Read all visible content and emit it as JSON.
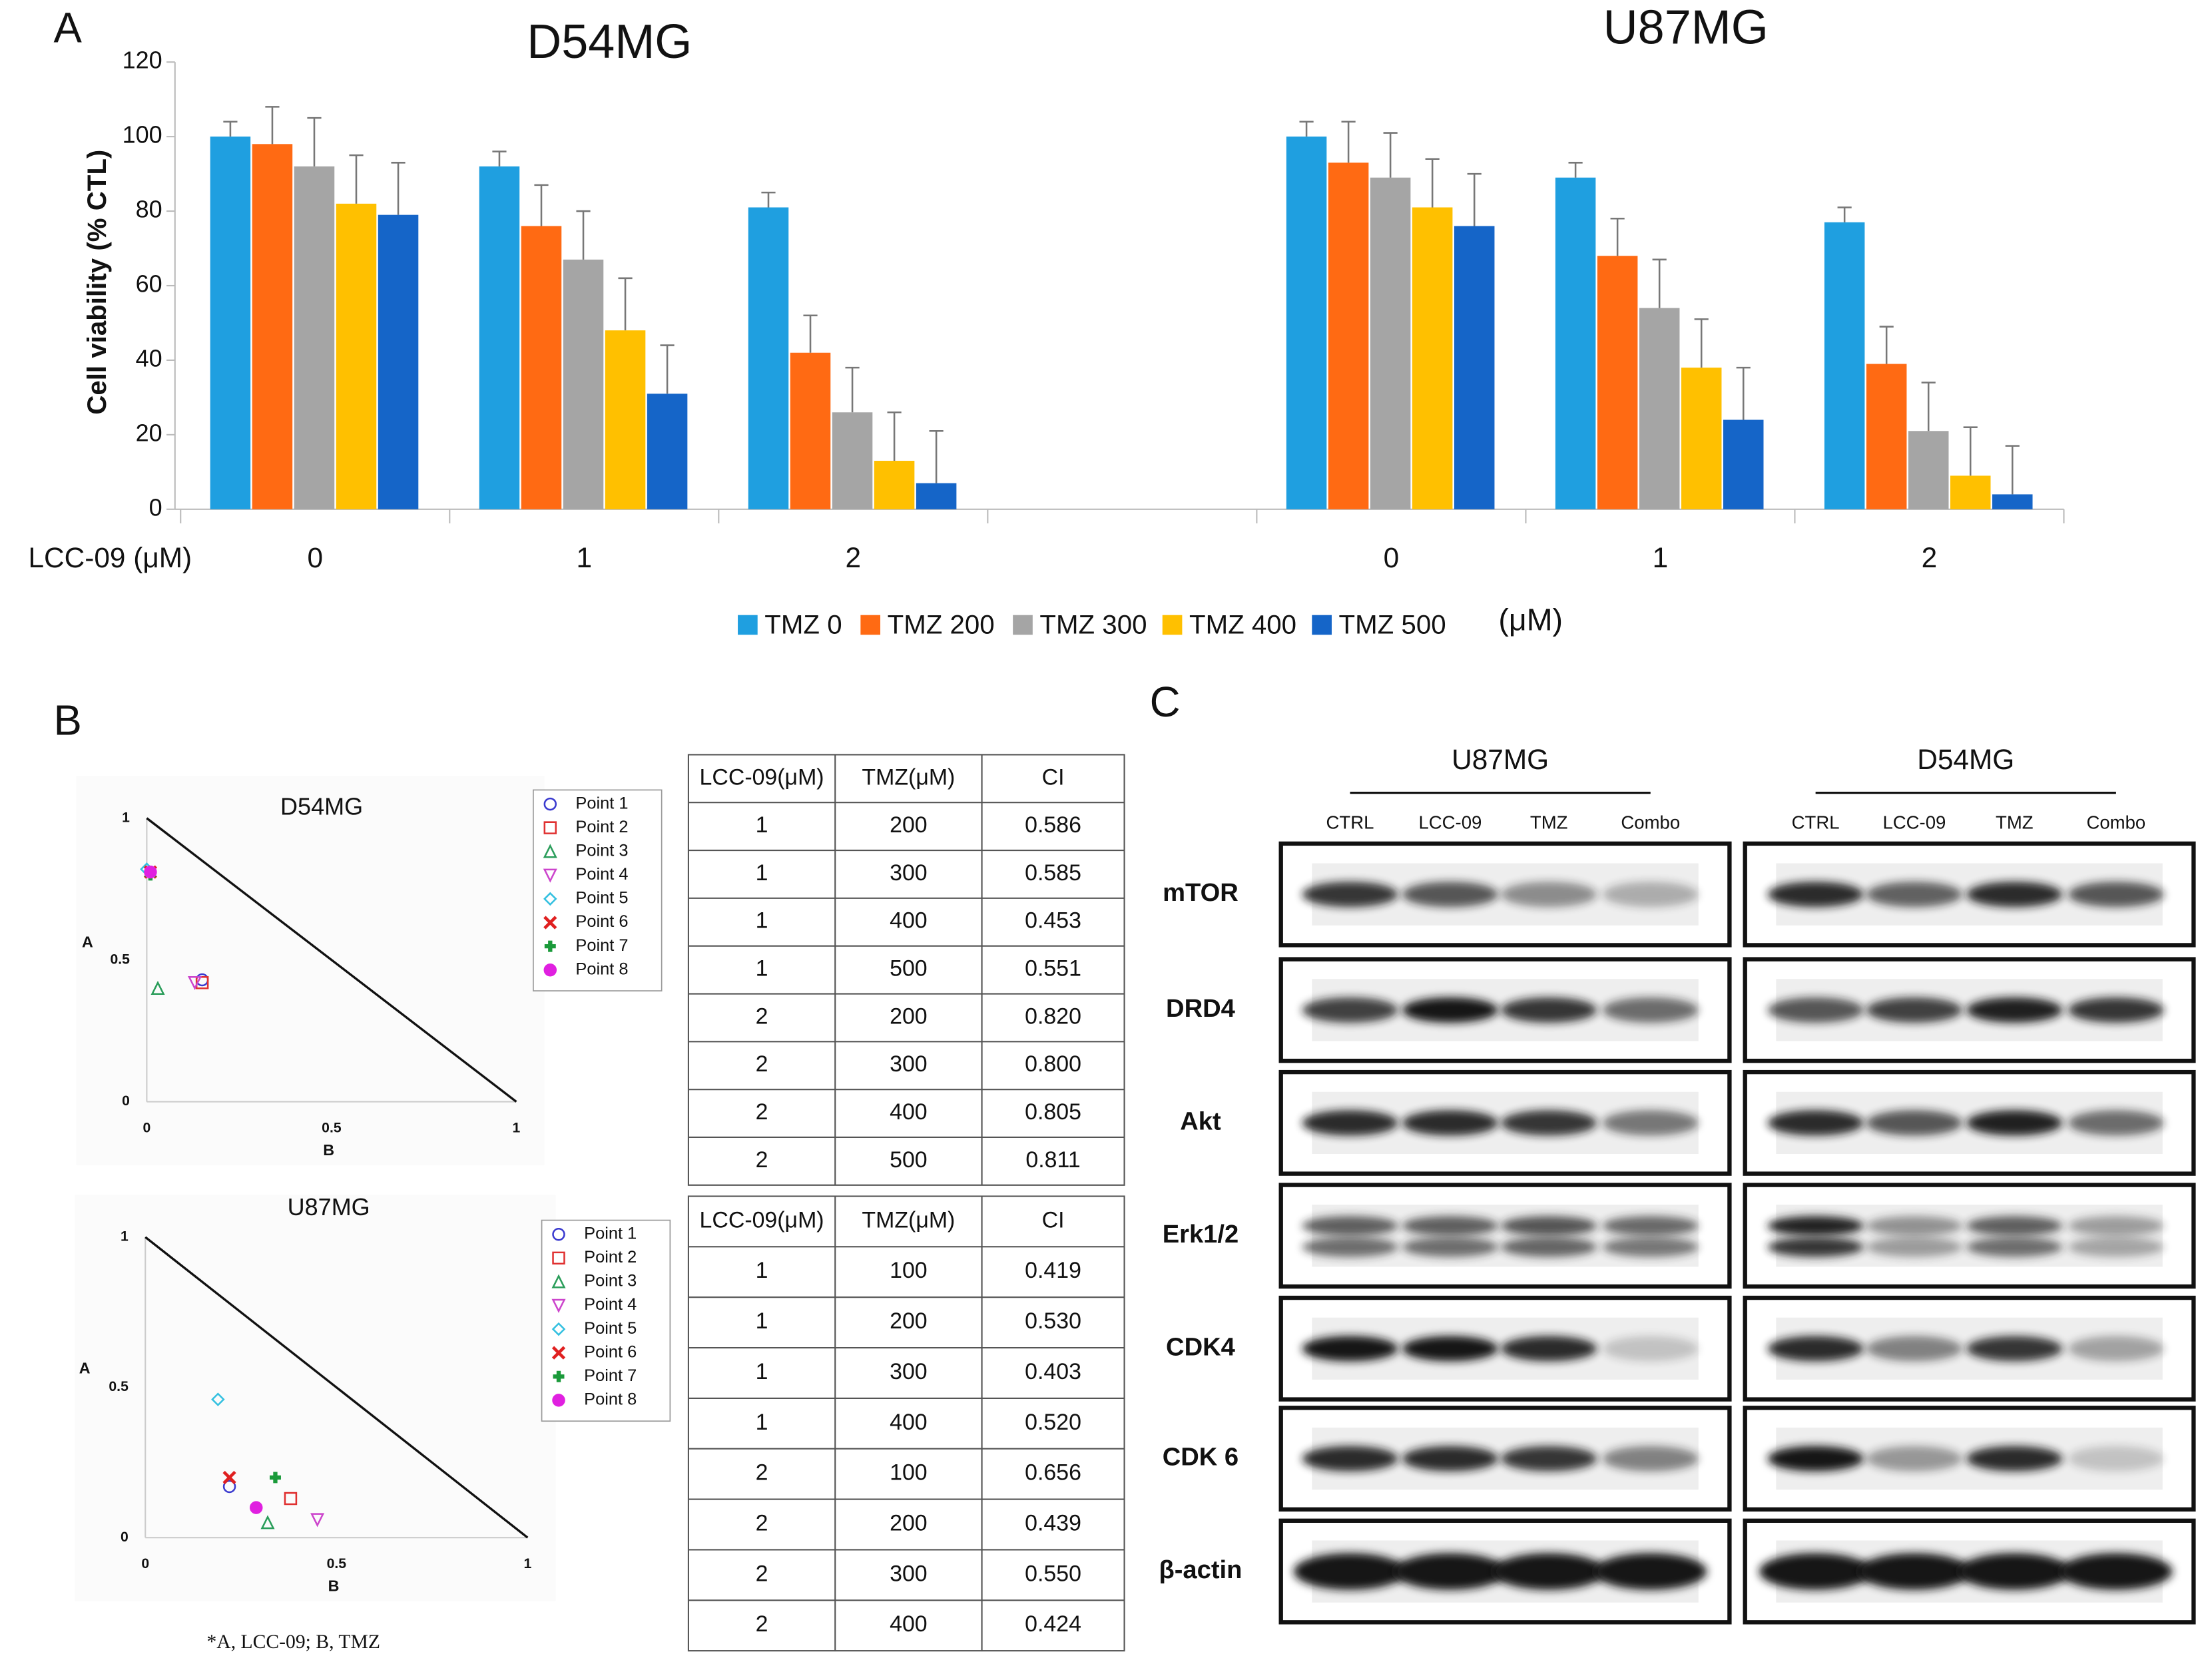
{
  "panel_labels": [
    "A",
    "B",
    "C"
  ],
  "chart_data": [
    {
      "type": "bar",
      "titles": [
        "D54MG",
        "U87MG"
      ],
      "y_label": "Cell viability (% CTL)",
      "x_label": "LCC-09 (μM)",
      "categories": [
        "0",
        "1",
        "2",
        null,
        "0",
        "1",
        "2"
      ],
      "ylim": [
        0,
        120
      ],
      "yticks": [
        0,
        20,
        40,
        60,
        80,
        100,
        120
      ],
      "legend_unit": "(μM)",
      "series": [
        {
          "name": "TMZ 0",
          "color": "#1f9fe0",
          "values": [
            100,
            92,
            81,
            null,
            100,
            89,
            77
          ],
          "errors": [
            4,
            4,
            4,
            null,
            4,
            4,
            4
          ]
        },
        {
          "name": "TMZ 200",
          "color": "#ff6a13",
          "values": [
            98,
            76,
            42,
            null,
            93,
            68,
            39
          ],
          "errors": [
            10,
            11,
            10,
            null,
            11,
            10,
            10
          ]
        },
        {
          "name": "TMZ 300",
          "color": "#a5a5a5",
          "values": [
            92,
            67,
            26,
            null,
            89,
            54,
            21
          ],
          "errors": [
            13,
            13,
            12,
            null,
            12,
            13,
            13
          ]
        },
        {
          "name": "TMZ 400",
          "color": "#ffc000",
          "values": [
            82,
            48,
            13,
            null,
            81,
            38,
            9
          ],
          "errors": [
            13,
            14,
            13,
            null,
            13,
            13,
            13
          ]
        },
        {
          "name": "TMZ 500",
          "color": "#1565c8",
          "values": [
            79,
            31,
            7,
            null,
            76,
            24,
            4
          ],
          "errors": [
            14,
            13,
            14,
            null,
            14,
            14,
            13
          ]
        }
      ]
    },
    {
      "type": "scatter",
      "title": "D54MG",
      "x_label": "B",
      "y_label": "A",
      "xlim": [
        0,
        1
      ],
      "ylim": [
        0,
        1
      ],
      "xticks": [
        0,
        0.5,
        1
      ],
      "yticks": [
        0,
        0.5,
        1
      ],
      "series": [
        {
          "name": "Point 1",
          "marker": "circle-open",
          "color": "#3a3acf",
          "x": [
            0.15
          ],
          "values": [
            0.43
          ]
        },
        {
          "name": "Point 2",
          "marker": "square-open",
          "color": "#e03030",
          "x": [
            0.15
          ],
          "values": [
            0.42
          ]
        },
        {
          "name": "Point 3",
          "marker": "triangle-up-open",
          "color": "#2a9d5a",
          "x": [
            0.03
          ],
          "values": [
            0.4
          ]
        },
        {
          "name": "Point 4",
          "marker": "triangle-down-open",
          "color": "#cc44cc",
          "x": [
            0.13
          ],
          "values": [
            0.42
          ]
        },
        {
          "name": "Point 5",
          "marker": "diamond-open",
          "color": "#33c0e0",
          "x": [
            0.0
          ],
          "values": [
            0.82
          ]
        },
        {
          "name": "Point 6",
          "marker": "x",
          "color": "#e02020",
          "x": [
            0.01
          ],
          "values": [
            0.81
          ]
        },
        {
          "name": "Point 7",
          "marker": "plus",
          "color": "#1a9a3a",
          "x": [
            0.01
          ],
          "values": [
            0.8
          ]
        },
        {
          "name": "Point 8",
          "marker": "circle-filled",
          "color": "#e020e0",
          "x": [
            0.01
          ],
          "values": [
            0.81
          ]
        }
      ]
    },
    {
      "type": "scatter",
      "title": "U87MG",
      "x_label": "B",
      "y_label": "A",
      "xlim": [
        0,
        1
      ],
      "ylim": [
        0,
        1
      ],
      "xticks": [
        0,
        0.5,
        1
      ],
      "yticks": [
        0,
        0.5,
        1
      ],
      "series": [
        {
          "name": "Point 1",
          "marker": "circle-open",
          "color": "#3a3acf",
          "x": [
            0.22
          ],
          "values": [
            0.17
          ]
        },
        {
          "name": "Point 2",
          "marker": "square-open",
          "color": "#e03030",
          "x": [
            0.38
          ],
          "values": [
            0.13
          ]
        },
        {
          "name": "Point 3",
          "marker": "triangle-up-open",
          "color": "#2a9d5a",
          "x": [
            0.32
          ],
          "values": [
            0.05
          ]
        },
        {
          "name": "Point 4",
          "marker": "triangle-down-open",
          "color": "#cc44cc",
          "x": [
            0.45
          ],
          "values": [
            0.06
          ]
        },
        {
          "name": "Point 5",
          "marker": "diamond-open",
          "color": "#33c0e0",
          "x": [
            0.19
          ],
          "values": [
            0.46
          ]
        },
        {
          "name": "Point 6",
          "marker": "x",
          "color": "#e02020",
          "x": [
            0.22
          ],
          "values": [
            0.2
          ]
        },
        {
          "name": "Point 7",
          "marker": "plus",
          "color": "#1a9a3a",
          "x": [
            0.34
          ],
          "values": [
            0.2
          ]
        },
        {
          "name": "Point 8",
          "marker": "circle-filled",
          "color": "#e020e0",
          "x": [
            0.29
          ],
          "values": [
            0.1
          ]
        }
      ]
    }
  ],
  "footnote": "*A, LCC-09; B, TMZ",
  "tables": [
    {
      "columns": [
        "LCC-09(μM)",
        "TMZ(μM)",
        "CI"
      ],
      "rows": [
        [
          "1",
          "200",
          "0.586"
        ],
        [
          "1",
          "300",
          "0.585"
        ],
        [
          "1",
          "400",
          "0.453"
        ],
        [
          "1",
          "500",
          "0.551"
        ],
        [
          "2",
          "200",
          "0.820"
        ],
        [
          "2",
          "300",
          "0.800"
        ],
        [
          "2",
          "400",
          "0.805"
        ],
        [
          "2",
          "500",
          "0.811"
        ]
      ]
    },
    {
      "columns": [
        "LCC-09(μM)",
        "TMZ(μM)",
        "CI"
      ],
      "rows": [
        [
          "1",
          "100",
          "0.419"
        ],
        [
          "1",
          "200",
          "0.530"
        ],
        [
          "1",
          "300",
          "0.403"
        ],
        [
          "1",
          "400",
          "0.520"
        ],
        [
          "2",
          "100",
          "0.656"
        ],
        [
          "2",
          "200",
          "0.439"
        ],
        [
          "2",
          "300",
          "0.550"
        ],
        [
          "2",
          "400",
          "0.424"
        ]
      ]
    }
  ],
  "blot": {
    "groups": [
      {
        "name": "U87MG",
        "lanes": [
          "CTRL",
          "LCC-09",
          "TMZ",
          "Combo"
        ]
      },
      {
        "name": "D54MG",
        "lanes": [
          "CTRL",
          "LCC-09",
          "TMZ",
          "Combo"
        ]
      }
    ],
    "proteins": [
      "mTOR",
      "DRD4",
      "Akt",
      "Erk1/2",
      "CDK4",
      "CDK 6",
      "β-actin"
    ]
  }
}
